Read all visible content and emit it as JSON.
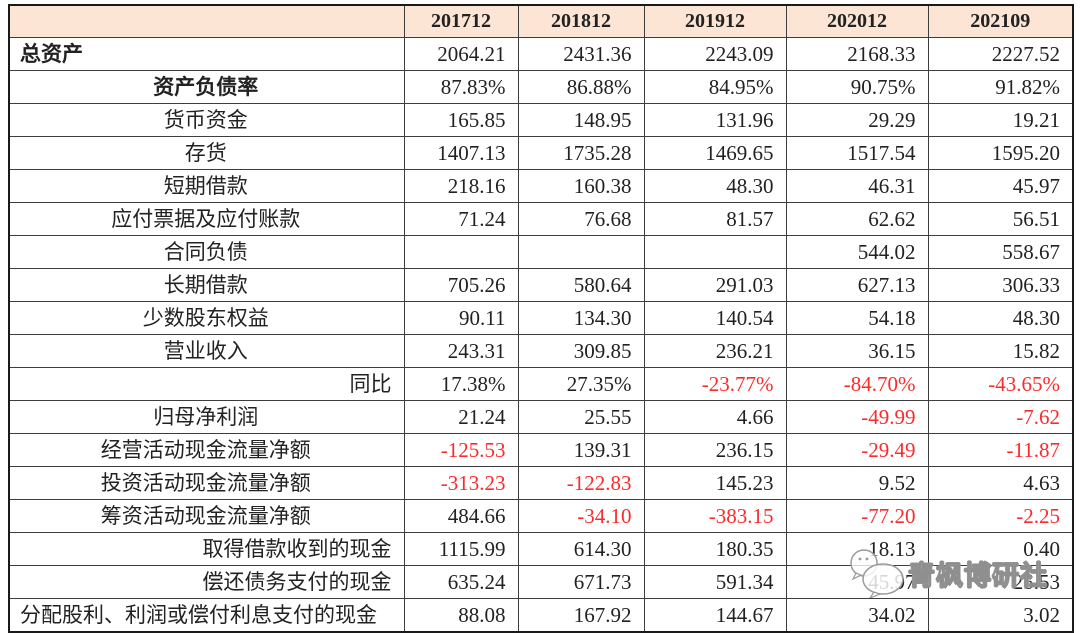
{
  "chart_data": {
    "type": "table",
    "title": "",
    "columns": [
      "201712",
      "201812",
      "201912",
      "202012",
      "202109"
    ],
    "rows": [
      {
        "label": "总资产",
        "bold": true,
        "align": "left",
        "values": [
          "2064.21",
          "2431.36",
          "2243.09",
          "2168.33",
          "2227.52"
        ]
      },
      {
        "label": "资产负债率",
        "bold": true,
        "align": "center",
        "values": [
          "87.83%",
          "86.88%",
          "84.95%",
          "90.75%",
          "91.82%"
        ]
      },
      {
        "label": "货币资金",
        "bold": false,
        "align": "center",
        "values": [
          "165.85",
          "148.95",
          "131.96",
          "29.29",
          "19.21"
        ]
      },
      {
        "label": "存货",
        "bold": false,
        "align": "center",
        "values": [
          "1407.13",
          "1735.28",
          "1469.65",
          "1517.54",
          "1595.20"
        ]
      },
      {
        "label": "短期借款",
        "bold": false,
        "align": "center",
        "values": [
          "218.16",
          "160.38",
          "48.30",
          "46.31",
          "45.97"
        ]
      },
      {
        "label": "应付票据及应付账款",
        "bold": false,
        "align": "center",
        "values": [
          "71.24",
          "76.68",
          "81.57",
          "62.62",
          "56.51"
        ]
      },
      {
        "label": "合同负债",
        "bold": false,
        "align": "center",
        "values": [
          "",
          "",
          "",
          "544.02",
          "558.67"
        ]
      },
      {
        "label": "长期借款",
        "bold": false,
        "align": "center",
        "values": [
          "705.26",
          "580.64",
          "291.03",
          "627.13",
          "306.33"
        ]
      },
      {
        "label": "少数股东权益",
        "bold": false,
        "align": "center",
        "values": [
          "90.11",
          "134.30",
          "140.54",
          "54.18",
          "48.30"
        ]
      },
      {
        "label": "营业收入",
        "bold": false,
        "align": "center",
        "values": [
          "243.31",
          "309.85",
          "236.21",
          "36.15",
          "15.82"
        ]
      },
      {
        "label": "同比",
        "bold": false,
        "align": "right",
        "values": [
          "17.38%",
          "27.35%",
          "-23.77%",
          "-84.70%",
          "-43.65%"
        ]
      },
      {
        "label": "归母净利润",
        "bold": false,
        "align": "center",
        "values": [
          "21.24",
          "25.55",
          "4.66",
          "-49.99",
          "-7.62"
        ]
      },
      {
        "label": "经营活动现金流量净额",
        "bold": false,
        "align": "center",
        "values": [
          "-125.53",
          "139.31",
          "236.15",
          "-29.49",
          "-11.87"
        ]
      },
      {
        "label": "投资活动现金流量净额",
        "bold": false,
        "align": "center",
        "values": [
          "-313.23",
          "-122.83",
          "145.23",
          "9.52",
          "4.63"
        ]
      },
      {
        "label": "筹资活动现金流量净额",
        "bold": false,
        "align": "center",
        "values": [
          "484.66",
          "-34.10",
          "-383.15",
          "-77.20",
          "-2.25"
        ]
      },
      {
        "label": "取得借款收到的现金",
        "bold": false,
        "align": "right",
        "values": [
          "1115.99",
          "614.30",
          "180.35",
          "18.13",
          "0.40"
        ]
      },
      {
        "label": "偿还债务支付的现金",
        "bold": false,
        "align": "right",
        "values": [
          "635.24",
          "671.73",
          "591.34",
          "45.97",
          "25.53"
        ]
      },
      {
        "label": "分配股利、利润或偿付利息支付的现金",
        "bold": false,
        "align": "left",
        "values": [
          "88.08",
          "167.92",
          "144.67",
          "34.02",
          "3.02"
        ]
      }
    ],
    "layout": {
      "negative_values_in_red": true,
      "header_row_shaded": true
    }
  },
  "watermark": {
    "text": "青枫博研社",
    "icon": "chat-bubbles-icon"
  },
  "colors": {
    "header_bg": "#fce5d4",
    "negative": "#fb2b2b",
    "text": "#222222",
    "border_inner": "#3d3d3d",
    "border_outer": "#1a1a1a",
    "watermark_outline": "#8f8f8f"
  }
}
